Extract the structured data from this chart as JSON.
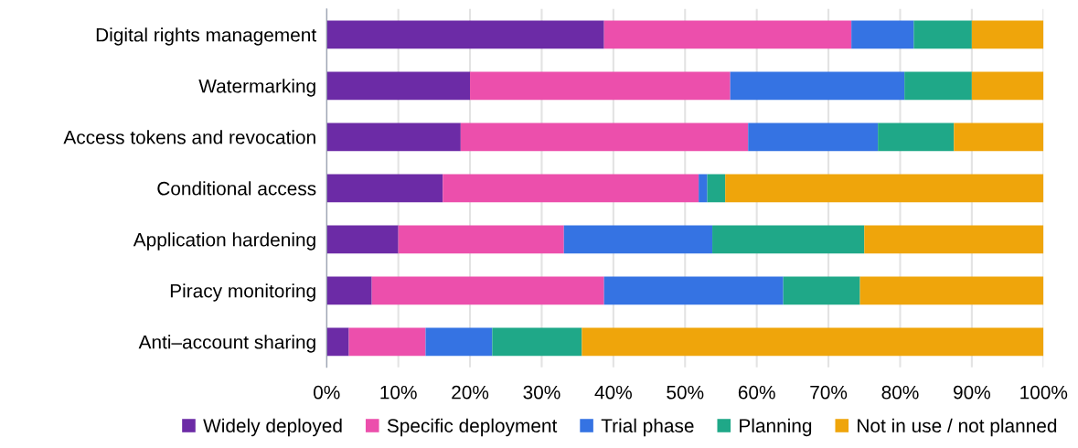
{
  "chart_data": {
    "type": "bar",
    "orientation": "horizontal",
    "stacked": true,
    "categories": [
      "Digital rights management",
      "Watermarking",
      "Access tokens and revocation",
      "Conditional access",
      "Application hardening",
      "Piracy monitoring",
      "Anti–account sharing"
    ],
    "series": [
      {
        "name": "Widely deployed",
        "color": "#6c2ba6",
        "values": [
          38.7,
          20.0,
          18.7,
          16.2,
          10.0,
          6.3,
          3.1
        ]
      },
      {
        "name": "Specific deployment",
        "color": "#ec4fac",
        "values": [
          34.5,
          36.3,
          40.1,
          35.7,
          23.1,
          32.4,
          10.7
        ]
      },
      {
        "name": "Trial phase",
        "color": "#3573e3",
        "values": [
          8.7,
          24.3,
          18.1,
          1.2,
          20.7,
          25.0,
          9.3
        ]
      },
      {
        "name": "Planning",
        "color": "#1fa888",
        "values": [
          8.1,
          9.4,
          10.6,
          2.5,
          21.2,
          10.7,
          12.5
        ]
      },
      {
        "name": "Not in use / not planned",
        "color": "#efa50b",
        "values": [
          10.0,
          10.0,
          12.5,
          44.4,
          25.0,
          25.6,
          64.4
        ]
      }
    ],
    "xlim": [
      0,
      100
    ],
    "xticks": [
      {
        "value": 0,
        "label": "0%"
      },
      {
        "value": 10,
        "label": "10%"
      },
      {
        "value": 20,
        "label": "20%"
      },
      {
        "value": 30,
        "label": "30%"
      },
      {
        "value": 40,
        "label": "40%"
      },
      {
        "value": 50,
        "label": "50%"
      },
      {
        "value": 60,
        "label": "60%"
      },
      {
        "value": 70,
        "label": "70%"
      },
      {
        "value": 80,
        "label": "80%"
      },
      {
        "value": 90,
        "label": "90%"
      },
      {
        "value": 100,
        "label": "100%"
      }
    ],
    "grid": "x",
    "legend": "bottom"
  }
}
